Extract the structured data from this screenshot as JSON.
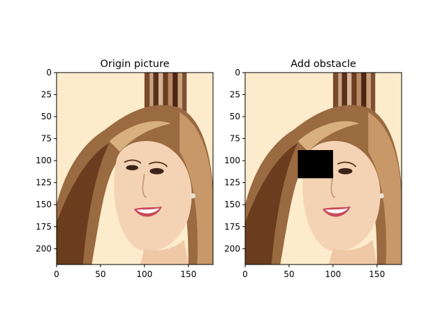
{
  "chart_data": [
    {
      "type": "image",
      "title": "Origin picture",
      "image_size": [
        178,
        218
      ],
      "xlim": [
        0,
        178
      ],
      "ylim": [
        218,
        0
      ],
      "xticks": [
        0,
        50,
        100,
        150
      ],
      "yticks": [
        0,
        25,
        50,
        75,
        100,
        125,
        150,
        175,
        200
      ],
      "content": "portrait photo"
    },
    {
      "type": "image",
      "title": "Add obstacle",
      "image_size": [
        178,
        218
      ],
      "xlim": [
        0,
        178
      ],
      "ylim": [
        218,
        0
      ],
      "xticks": [
        0,
        50,
        100,
        150
      ],
      "yticks": [
        0,
        25,
        50,
        75,
        100,
        125,
        150,
        175,
        200
      ],
      "content": "portrait photo",
      "obstacle": {
        "x0": 60,
        "x1": 100,
        "y0": 88,
        "y1": 120,
        "color": "#000000"
      }
    }
  ],
  "colors": {
    "background": "#fdeccc",
    "hair_dark": "#6b3d1e",
    "hair_light": "#c89868",
    "skin": "#f4d3b4",
    "obstacle": "#000000"
  }
}
